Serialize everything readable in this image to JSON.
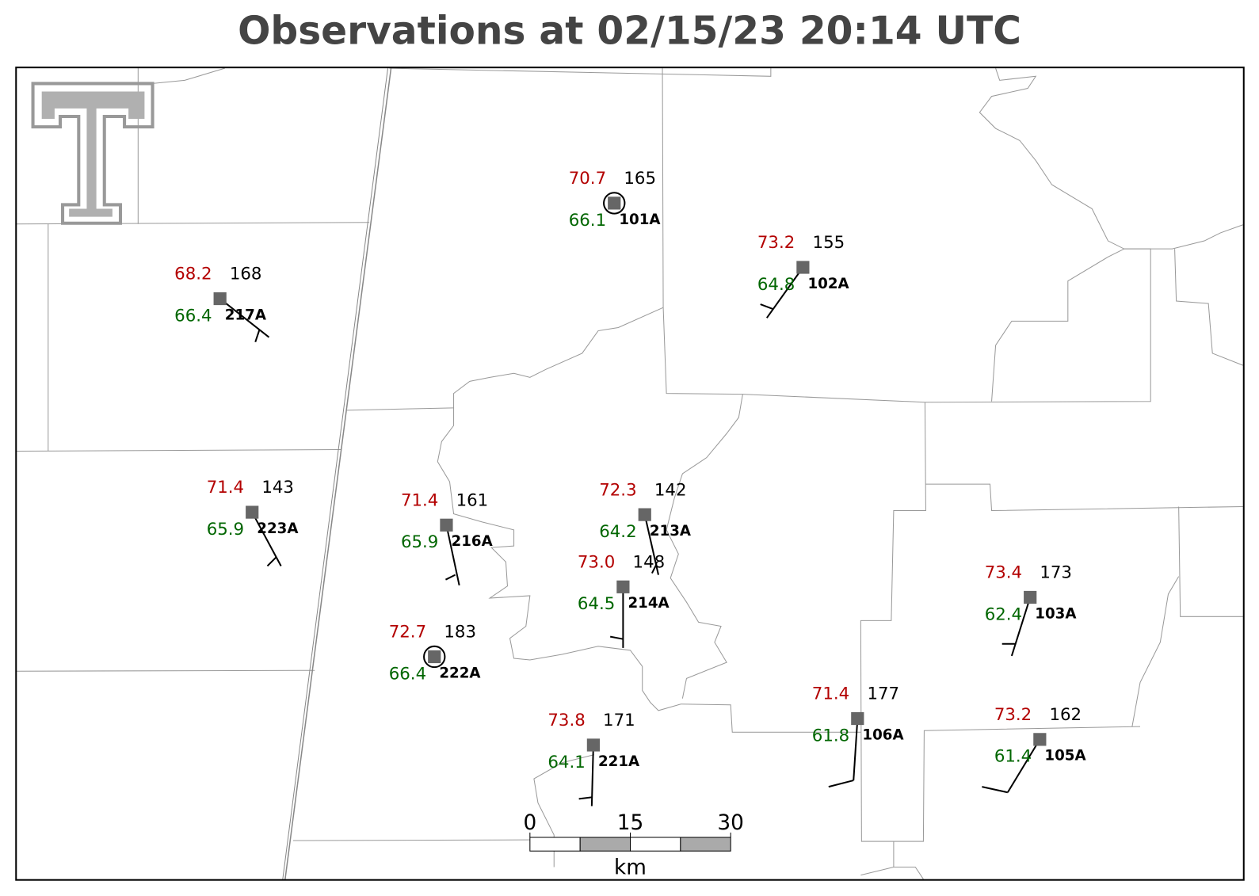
{
  "title": "Observations at 02/15/23 20:14 UTC",
  "stations": [
    {
      "id": "101A",
      "temperature": "70.7",
      "dewpoint": "66.1",
      "value": "165"
    },
    {
      "id": "102A",
      "temperature": "73.2",
      "dewpoint": "64.8",
      "value": "155"
    },
    {
      "id": "217A",
      "temperature": "68.2",
      "dewpoint": "66.4",
      "value": "168"
    },
    {
      "id": "223A",
      "temperature": "71.4",
      "dewpoint": "65.9",
      "value": "143"
    },
    {
      "id": "216A",
      "temperature": "71.4",
      "dewpoint": "65.9",
      "value": "161"
    },
    {
      "id": "213A",
      "temperature": "72.3",
      "dewpoint": "64.2",
      "value": "142"
    },
    {
      "id": "214A",
      "temperature": "73.0",
      "dewpoint": "64.5",
      "value": "148"
    },
    {
      "id": "222A",
      "temperature": "72.7",
      "dewpoint": "66.4",
      "value": "183"
    },
    {
      "id": "221A",
      "temperature": "73.8",
      "dewpoint": "64.1",
      "value": "171"
    },
    {
      "id": "106A",
      "temperature": "71.4",
      "dewpoint": "61.8",
      "value": "177"
    },
    {
      "id": "103A",
      "temperature": "73.4",
      "dewpoint": "62.4",
      "value": "173"
    },
    {
      "id": "105A",
      "temperature": "73.2",
      "dewpoint": "61.4",
      "value": "162"
    }
  ],
  "scale_bar": {
    "ticks": [
      "0",
      "15",
      "30"
    ],
    "unit": "km"
  }
}
